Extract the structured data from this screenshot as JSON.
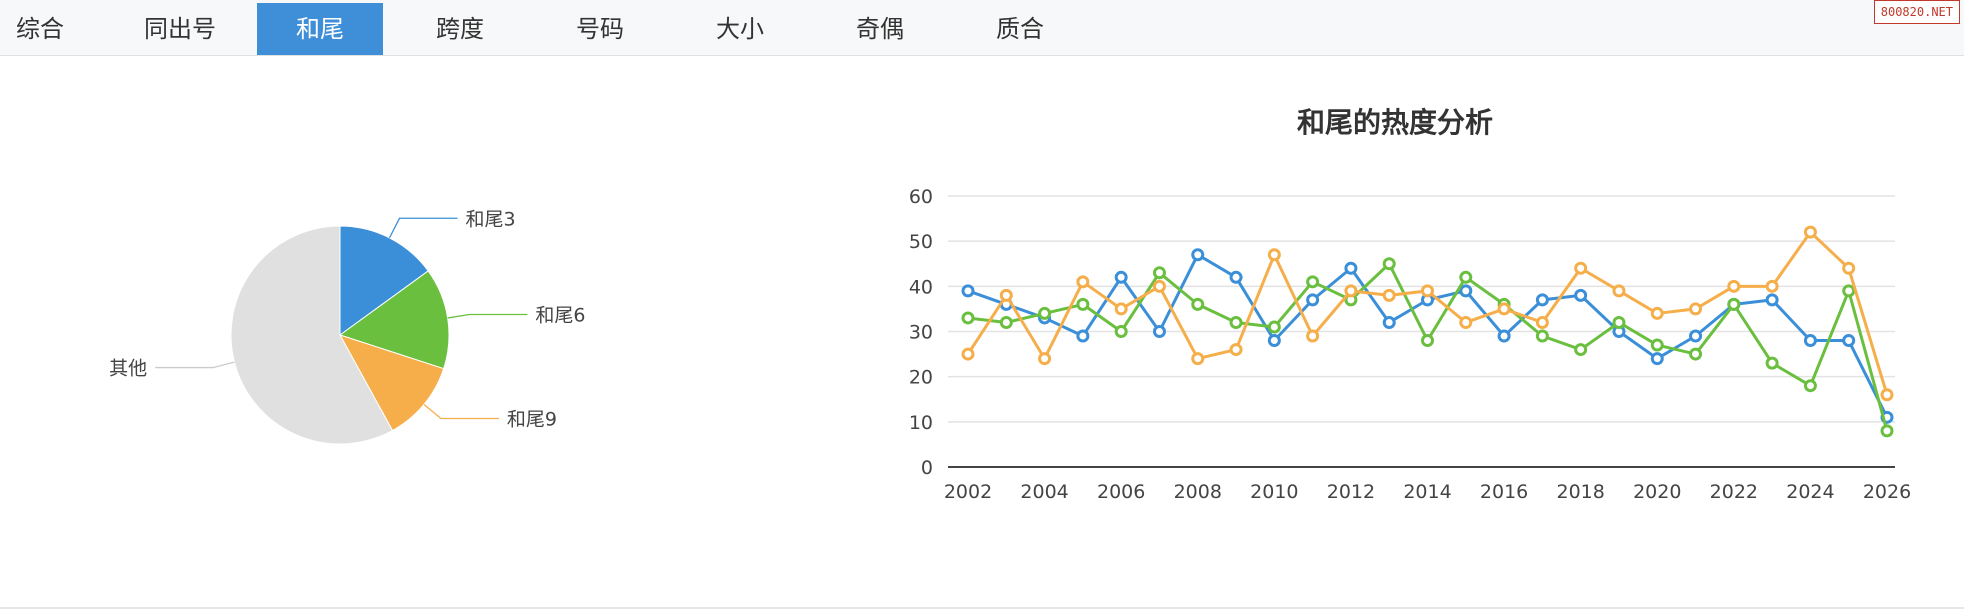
{
  "tabs": [
    {
      "label": "综合",
      "active": false
    },
    {
      "label": "同出号",
      "active": false
    },
    {
      "label": "和尾",
      "active": true
    },
    {
      "label": "跨度",
      "active": false
    },
    {
      "label": "号码",
      "active": false
    },
    {
      "label": "大小",
      "active": false
    },
    {
      "label": "奇偶",
      "active": false
    },
    {
      "label": "质合",
      "active": false
    }
  ],
  "site_badge": "800820.NET",
  "colors": {
    "accent": "#3f8fd8",
    "blue": "#3a8fd8",
    "green": "#6abf3f",
    "orange": "#f5ae4a",
    "gray": "#e0e0e0"
  },
  "chart_data": [
    {
      "type": "pie",
      "slices": [
        {
          "label": "和尾3",
          "value": 15,
          "color": "#3a8fd8"
        },
        {
          "label": "和尾6",
          "value": 15,
          "color": "#6abf3f"
        },
        {
          "label": "和尾9",
          "value": 12,
          "color": "#f5ae4a"
        },
        {
          "label": "其他",
          "value": 58,
          "color": "#e0e0e0"
        }
      ]
    },
    {
      "type": "line",
      "title": "和尾的热度分析",
      "x": [
        2002,
        2003,
        2004,
        2005,
        2006,
        2007,
        2008,
        2009,
        2010,
        2011,
        2012,
        2013,
        2014,
        2015,
        2016,
        2017,
        2018,
        2019,
        2020,
        2021,
        2022,
        2023,
        2024,
        2025,
        2026
      ],
      "x_ticks": [
        "2002",
        "2004",
        "2006",
        "2008",
        "2010",
        "2012",
        "2014",
        "2016",
        "2018",
        "2020",
        "2022",
        "2024",
        "2026"
      ],
      "ylim": [
        0,
        60
      ],
      "y_ticks": [
        "0",
        "10",
        "20",
        "30",
        "40",
        "50",
        "60"
      ],
      "grid": true,
      "series": [
        {
          "color": "#3a8fd8",
          "values": [
            39,
            36,
            33,
            29,
            42,
            30,
            47,
            42,
            28,
            37,
            44,
            32,
            37,
            39,
            29,
            37,
            38,
            30,
            24,
            29,
            36,
            37,
            28,
            28,
            11
          ]
        },
        {
          "color": "#6abf3f",
          "values": [
            33,
            32,
            34,
            36,
            30,
            43,
            36,
            32,
            31,
            41,
            37,
            45,
            28,
            42,
            36,
            29,
            26,
            32,
            27,
            25,
            36,
            23,
            18,
            39,
            8
          ]
        },
        {
          "color": "#f5ae4a",
          "values": [
            25,
            38,
            24,
            41,
            35,
            40,
            24,
            26,
            47,
            29,
            39,
            38,
            39,
            32,
            35,
            32,
            44,
            39,
            34,
            35,
            40,
            40,
            52,
            44,
            16
          ]
        }
      ]
    }
  ]
}
